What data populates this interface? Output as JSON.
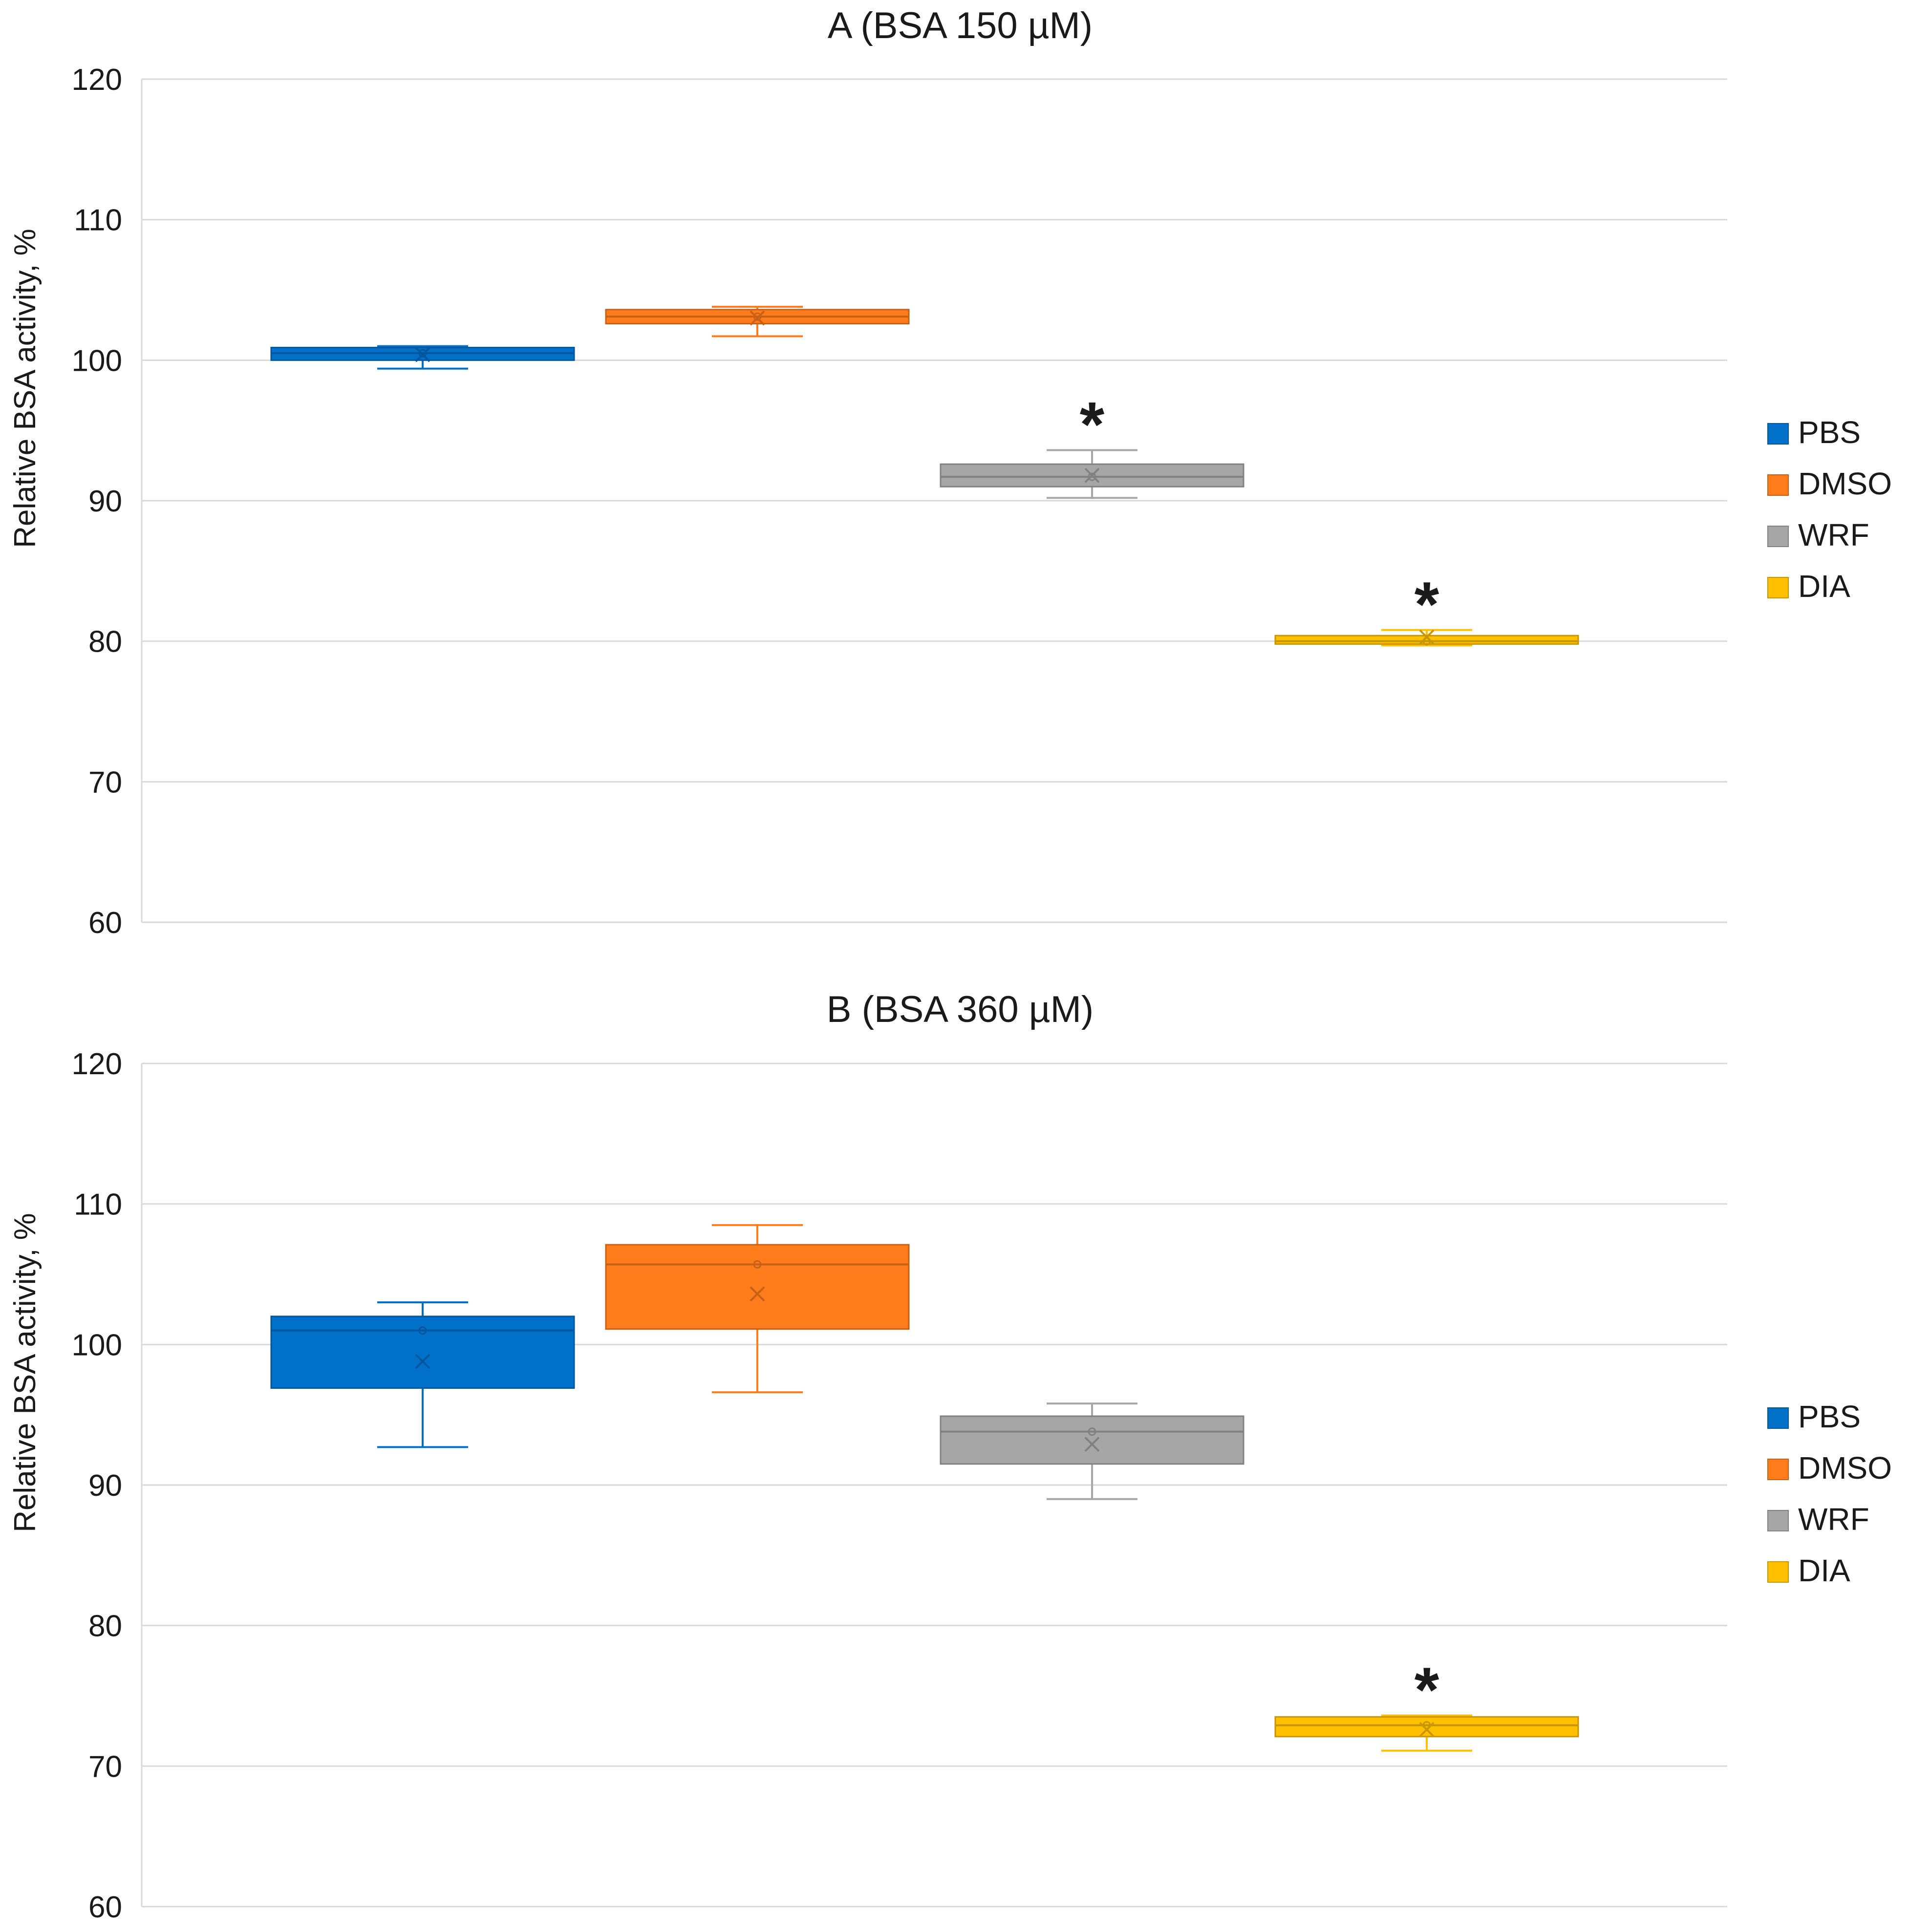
{
  "colors": {
    "PBS": "#0070C9",
    "DMSO": "#FF7C1C",
    "WRF": "#A6A6A6",
    "DIA": "#FFC000",
    "grid": "#d9d9d9"
  },
  "chart_data": [
    {
      "type": "box",
      "title": "A (BSA 150 µM)",
      "ylabel": "Relative BSA activity, %",
      "ylim": [
        60,
        120
      ],
      "yticks": [
        60,
        70,
        80,
        90,
        100,
        110,
        120
      ],
      "legend": [
        "PBS",
        "DMSO",
        "WRF",
        "DIA"
      ],
      "legend_position": "right",
      "groups": [
        {
          "name": "PBS",
          "min": 99.4,
          "q1": 100.0,
          "median": 100.5,
          "q3": 100.9,
          "max": 101.0,
          "mean": 100.4,
          "significant": false
        },
        {
          "name": "DMSO",
          "min": 101.7,
          "q1": 102.6,
          "median": 103.1,
          "q3": 103.6,
          "max": 103.8,
          "mean": 103.0,
          "significant": false
        },
        {
          "name": "WRF",
          "min": 90.2,
          "q1": 91.0,
          "median": 91.7,
          "q3": 92.6,
          "max": 93.6,
          "mean": 91.8,
          "significant": true
        },
        {
          "name": "DIA",
          "min": 79.7,
          "q1": 79.8,
          "median": 80.0,
          "q3": 80.4,
          "max": 80.8,
          "mean": 80.3,
          "significant": true
        }
      ],
      "significance_marker": "*"
    },
    {
      "type": "box",
      "title": "B (BSA 360 µM)",
      "ylabel": "Relative BSA activity, %",
      "ylim": [
        60,
        120
      ],
      "yticks": [
        60,
        70,
        80,
        90,
        100,
        110,
        120
      ],
      "legend": [
        "PBS",
        "DMSO",
        "WRF",
        "DIA"
      ],
      "legend_position": "right",
      "groups": [
        {
          "name": "PBS",
          "min": 92.7,
          "q1": 96.9,
          "median": 101.0,
          "q3": 102.0,
          "max": 103.0,
          "mean": 98.8,
          "significant": false
        },
        {
          "name": "DMSO",
          "min": 96.6,
          "q1": 101.1,
          "median": 105.7,
          "q3": 107.1,
          "max": 108.5,
          "mean": 103.6,
          "significant": false
        },
        {
          "name": "WRF",
          "min": 89.0,
          "q1": 91.5,
          "median": 93.8,
          "q3": 94.9,
          "max": 95.8,
          "mean": 92.9,
          "significant": false
        },
        {
          "name": "DIA",
          "min": 71.1,
          "q1": 72.1,
          "median": 72.9,
          "q3": 73.5,
          "max": 73.6,
          "mean": 72.6,
          "significant": true
        }
      ],
      "significance_marker": "*"
    }
  ]
}
